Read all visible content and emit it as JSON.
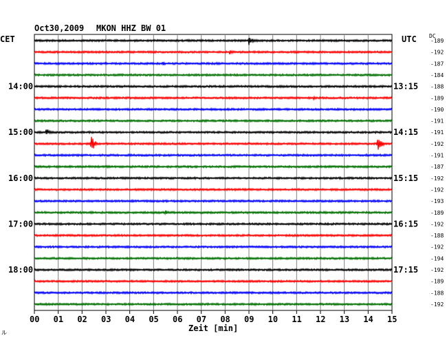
{
  "header": {
    "date": "Oct30,2009",
    "station": "MKON HHZ BW 01",
    "left_tz": "CET",
    "right_tz": "UTC",
    "dc_label": "DC"
  },
  "chart_data": {
    "type": "line",
    "title": "Oct30,2009   MKON HHZ BW 01",
    "xlabel": "Zeit [min]",
    "xlim": [
      0,
      15
    ],
    "x_ticks": [
      "00",
      "01",
      "02",
      "03",
      "04",
      "05",
      "06",
      "07",
      "08",
      "09",
      "10",
      "11",
      "12",
      "13",
      "14",
      "15"
    ],
    "grid": true,
    "left_hour_labels": [
      "14:00",
      "15:00",
      "16:00",
      "17:00",
      "18:00"
    ],
    "right_hour_labels": [
      "13:15",
      "14:15",
      "15:15",
      "16:15",
      "17:15"
    ],
    "dc_offsets": [
      -189,
      -192,
      -187,
      -184,
      -188,
      -189,
      -190,
      -191,
      -191,
      -192,
      -191,
      -187,
      -192,
      -192,
      -193,
      -189,
      -192,
      -188,
      -192,
      -194,
      -192,
      -189,
      -188,
      -192
    ],
    "colors": [
      "#000000",
      "#ff0000",
      "#0000ff",
      "#007000"
    ],
    "events": [
      {
        "trace": 0,
        "minute": 9.0,
        "amplitude": 7
      },
      {
        "trace": 1,
        "minute": 8.2,
        "amplitude": 4
      },
      {
        "trace": 2,
        "minute": 5.4,
        "amplitude": 3
      },
      {
        "trace": 5,
        "minute": 11.7,
        "amplitude": 3
      },
      {
        "trace": 8,
        "minute": 0.5,
        "amplitude": 6
      },
      {
        "trace": 9,
        "minute": 2.4,
        "amplitude": 12
      },
      {
        "trace": 9,
        "minute": 14.4,
        "amplitude": 13
      },
      {
        "trace": 10,
        "minute": 13.9,
        "amplitude": 2
      },
      {
        "trace": 15,
        "minute": 5.5,
        "amplitude": 4
      },
      {
        "trace": 15,
        "minute": 1.9,
        "amplitude": 2
      }
    ]
  },
  "footer": {
    "corner_mark": "ル"
  }
}
